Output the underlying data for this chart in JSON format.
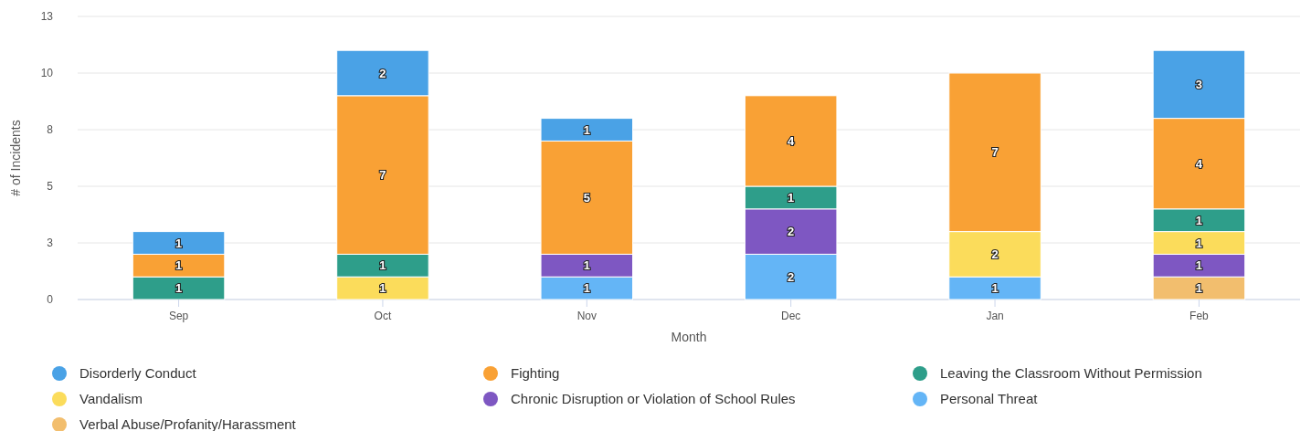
{
  "chart_data": {
    "type": "bar",
    "stacked": true,
    "xlabel": "Month",
    "ylabel": "# of Incidents",
    "categories": [
      "Sep",
      "Oct",
      "Nov",
      "Dec",
      "Jan",
      "Feb"
    ],
    "series": [
      {
        "name": "Verbal Abuse/Profanity/Harassment",
        "color": "#f2be6e",
        "values": [
          null,
          null,
          null,
          null,
          null,
          1
        ]
      },
      {
        "name": "Personal Threat",
        "color": "#64b5f6",
        "values": [
          null,
          null,
          1,
          2,
          1,
          null
        ]
      },
      {
        "name": "Chronic Disruption or Violation of School Rules",
        "color": "#7e57c2",
        "values": [
          null,
          null,
          1,
          2,
          null,
          1
        ]
      },
      {
        "name": "Vandalism",
        "color": "#fbdc5b",
        "values": [
          null,
          1,
          null,
          null,
          2,
          1
        ]
      },
      {
        "name": "Leaving the Classroom Without Permission",
        "color": "#2e9e8a",
        "values": [
          1,
          1,
          null,
          1,
          null,
          1
        ]
      },
      {
        "name": "Fighting",
        "color": "#f9a135",
        "values": [
          1,
          7,
          5,
          4,
          7,
          4
        ]
      },
      {
        "name": "Disorderly Conduct",
        "color": "#4aa2e6",
        "values": [
          1,
          2,
          1,
          null,
          null,
          3
        ]
      }
    ],
    "ylim": [
      0,
      12.5
    ],
    "yticks": [
      0,
      {
        "value": 2.5,
        "label": "3"
      },
      5,
      {
        "value": 7.5,
        "label": "8"
      },
      10,
      {
        "value": 12.5,
        "label": "13"
      }
    ],
    "grid": "y",
    "legend": "bottom",
    "data_labels": true
  }
}
